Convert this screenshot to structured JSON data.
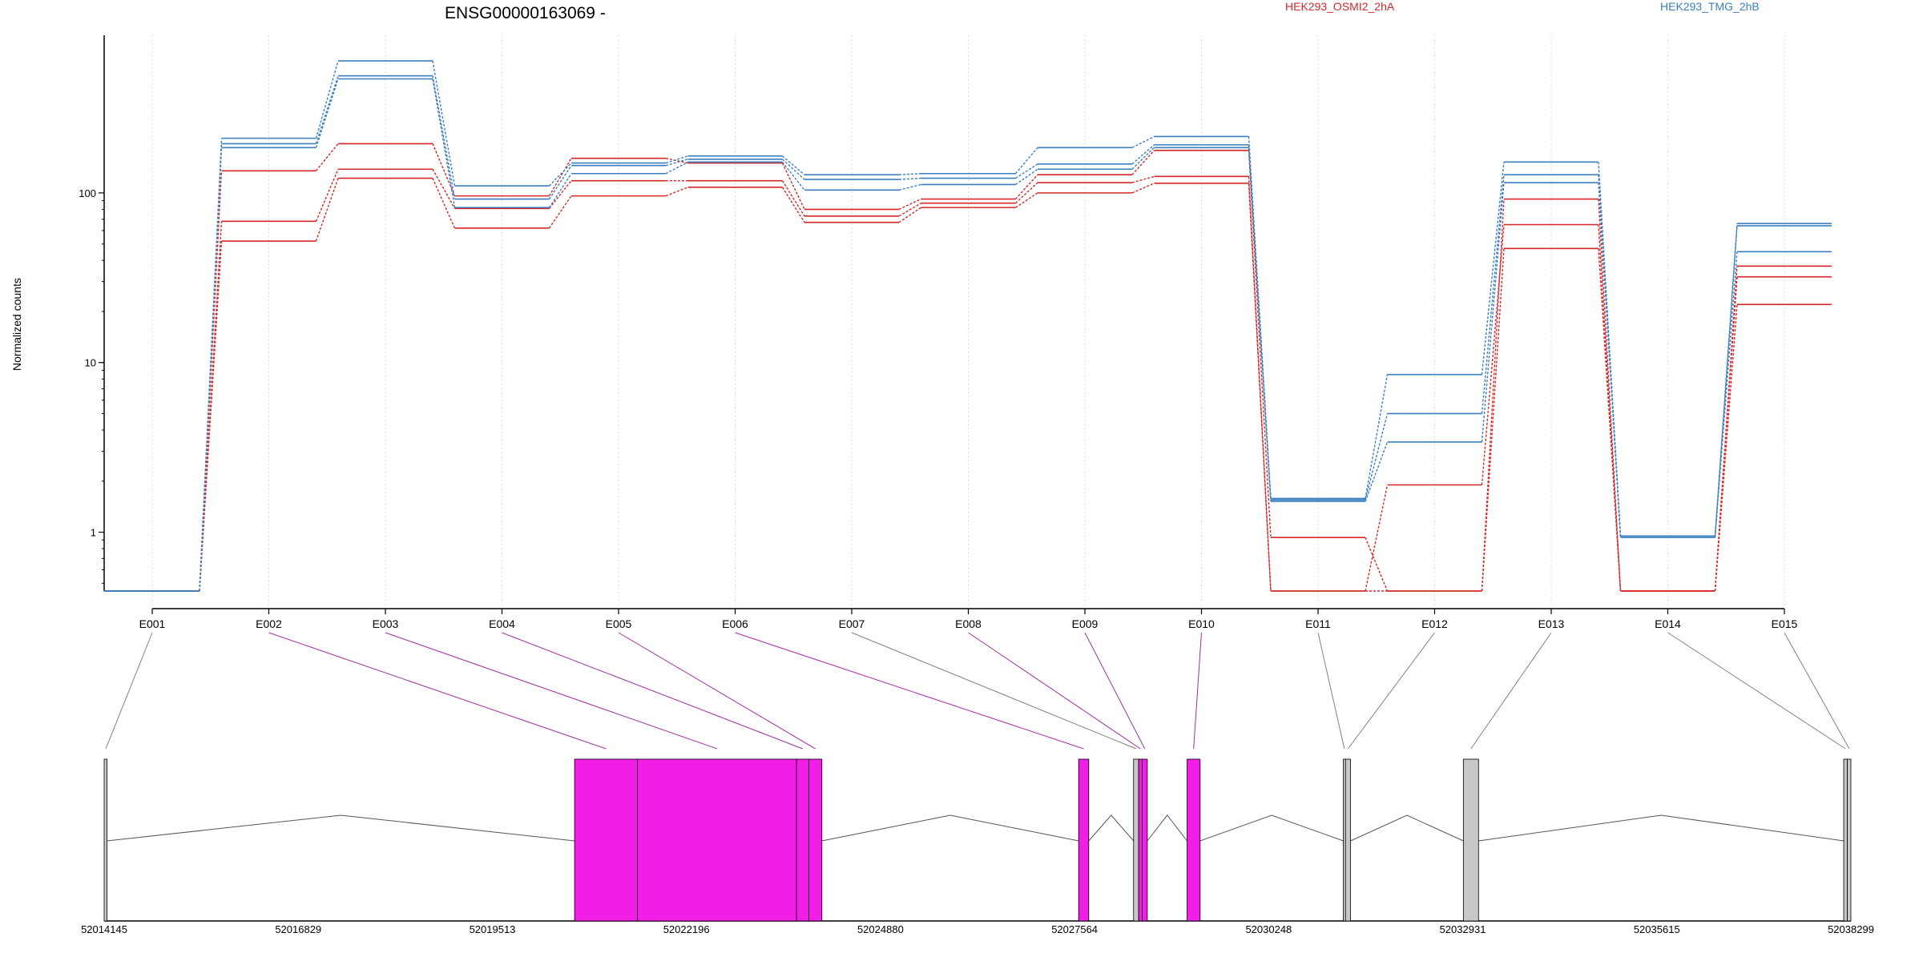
{
  "chart_data": {
    "type": "line",
    "title": "ENSG00000163069 -",
    "ylabel": "Normalized counts",
    "xlabel": "",
    "yscale": "log",
    "ylim": [
      0.45,
      850
    ],
    "yticks": [
      1,
      10,
      100
    ],
    "ytick_labels": [
      "1",
      "10",
      "100"
    ],
    "categories": [
      "E001",
      "E002",
      "E003",
      "E004",
      "E005",
      "E006",
      "E007",
      "E008",
      "E009",
      "E010",
      "E011",
      "E012",
      "E013",
      "E014",
      "E015"
    ],
    "grid": "vertical dotted",
    "legend": [
      {
        "label": "HEK293_OSMI2_2hA",
        "color": "#d62728",
        "position": "top"
      },
      {
        "label": "HEK293_TMG_2hB",
        "color": "#3a7fc0",
        "position": "top-right"
      }
    ],
    "series": [
      {
        "group": "HEK293_OSMI2_2hA",
        "color": "#d62728",
        "values": [
          0.45,
          135,
          195,
          96,
          160,
          150,
          80,
          92,
          128,
          178,
          0.93,
          0.45,
          92,
          0.45,
          37
        ]
      },
      {
        "group": "HEK293_OSMI2_2hA",
        "color": "#d62728",
        "values": [
          0.45,
          68,
          138,
          81,
          118,
          118,
          73,
          87,
          115,
          125,
          0.45,
          1.9,
          65,
          0.45,
          32
        ]
      },
      {
        "group": "HEK293_OSMI2_2hA",
        "color": "#d62728",
        "values": [
          0.45,
          52,
          122,
          62,
          96,
          108,
          67,
          82,
          100,
          114,
          0.45,
          0.45,
          47,
          0.45,
          22
        ]
      },
      {
        "group": "HEK293_TMG_2hB",
        "color": "#3a7fc0",
        "values": [
          0.45,
          210,
          600,
          110,
          150,
          165,
          128,
          130,
          185,
          215,
          1.58,
          8.5,
          152,
          0.95,
          66
        ]
      },
      {
        "group": "HEK293_TMG_2hB",
        "color": "#3a7fc0",
        "values": [
          0.45,
          195,
          490,
          92,
          145,
          158,
          120,
          122,
          148,
          192,
          1.55,
          5.0,
          128,
          0.93,
          64
        ]
      },
      {
        "group": "HEK293_TMG_2hB",
        "color": "#3a7fc0",
        "values": [
          0.45,
          185,
          470,
          82,
          130,
          152,
          104,
          112,
          138,
          185,
          1.52,
          3.4,
          115,
          0.93,
          45
        ]
      }
    ],
    "gene_model": {
      "coordinate_ticks": [
        "52014145",
        "52016829",
        "52019513",
        "52022196",
        "52024880",
        "52027564",
        "52030248",
        "52032931",
        "52035615",
        "52038299"
      ],
      "start": 52014145,
      "end": 52038299,
      "exon_colors": {
        "highlighted": "#f01ee6",
        "normal": "#c8c8c8"
      },
      "exons": [
        {
          "id": "E001",
          "start": 52014145,
          "end": 52014185,
          "highlighted": false
        },
        {
          "id": "E002",
          "start": 52020650,
          "end": 52021520,
          "highlighted": true
        },
        {
          "id": "E003",
          "start": 52021520,
          "end": 52023720,
          "highlighted": true
        },
        {
          "id": "E004",
          "start": 52023720,
          "end": 52023890,
          "highlighted": true
        },
        {
          "id": "E005",
          "start": 52023890,
          "end": 52024070,
          "highlighted": true
        },
        {
          "id": "E006",
          "start": 52027620,
          "end": 52027760,
          "highlighted": true
        },
        {
          "id": "E007",
          "start": 52028380,
          "end": 52028450,
          "highlighted": false
        },
        {
          "id": "E008",
          "start": 52028450,
          "end": 52028500,
          "highlighted": true
        },
        {
          "id": "E009",
          "start": 52028500,
          "end": 52028570,
          "highlighted": true
        },
        {
          "id": "E010",
          "start": 52029120,
          "end": 52029300,
          "highlighted": true
        },
        {
          "id": "E011",
          "start": 52031280,
          "end": 52031310,
          "highlighted": false
        },
        {
          "id": "E012",
          "start": 52031310,
          "end": 52031380,
          "highlighted": false
        },
        {
          "id": "E013",
          "start": 52032940,
          "end": 52033150,
          "highlighted": false
        },
        {
          "id": "E014",
          "start": 52038200,
          "end": 52038250,
          "highlighted": false
        },
        {
          "id": "E015",
          "start": 52038250,
          "end": 52038299,
          "highlighted": false
        }
      ]
    }
  }
}
